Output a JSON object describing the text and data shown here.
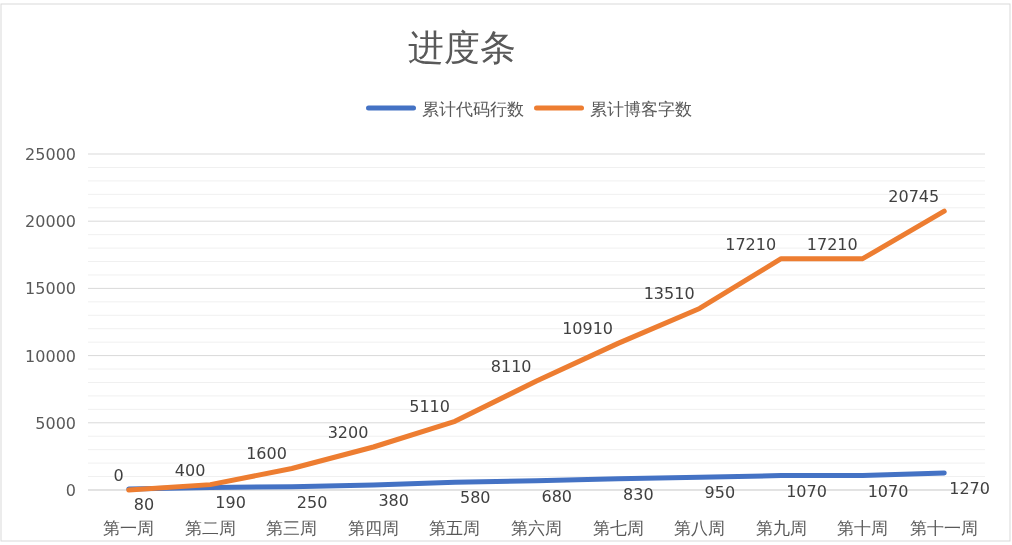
{
  "chart_data": {
    "type": "line",
    "title": "进度条",
    "categories": [
      "第一周",
      "第二周",
      "第三周",
      "第四周",
      "第五周",
      "第六周",
      "第七周",
      "第八周",
      "第九周",
      "第十周",
      "第十一周"
    ],
    "series": [
      {
        "name": "累计代码行数",
        "color": "#4472c4",
        "values": [
          80,
          190,
          250,
          380,
          580,
          680,
          830,
          950,
          1070,
          1070,
          1270
        ]
      },
      {
        "name": "累计博客字数",
        "color": "#ed7d31",
        "values": [
          0,
          400,
          1600,
          3200,
          5110,
          8110,
          10910,
          13510,
          17210,
          17210,
          20745
        ]
      }
    ],
    "ylim": [
      0,
      25000
    ],
    "yticks": [
      0,
      {
        "value": 1000,
        "label": null
      },
      {
        "value": 2000,
        "label": null
      },
      {
        "value": 3000,
        "label": null
      },
      {
        "value": 4000,
        "label": null
      },
      5000,
      {
        "value": 6000,
        "label": null
      },
      {
        "value": 7000,
        "label": null
      },
      {
        "value": 8000,
        "label": null
      },
      {
        "value": 9000,
        "label": null
      },
      10000,
      {
        "value": 11000,
        "label": null
      },
      {
        "value": 12000,
        "label": null
      },
      {
        "value": 13000,
        "label": null
      },
      {
        "value": 14000,
        "label": null
      },
      15000,
      {
        "value": 16000,
        "label": null
      },
      {
        "value": 17000,
        "label": null
      },
      {
        "value": 18000,
        "label": null
      },
      {
        "value": 19000,
        "label": null
      },
      20000,
      {
        "value": 21000,
        "label": null
      },
      {
        "value": 22000,
        "label": null
      },
      {
        "value": 23000,
        "label": null
      },
      {
        "value": 24000,
        "label": null
      },
      25000
    ],
    "grid": true,
    "legend": "top",
    "marker": "none",
    "line_style": "solid",
    "data_labels": true
  }
}
